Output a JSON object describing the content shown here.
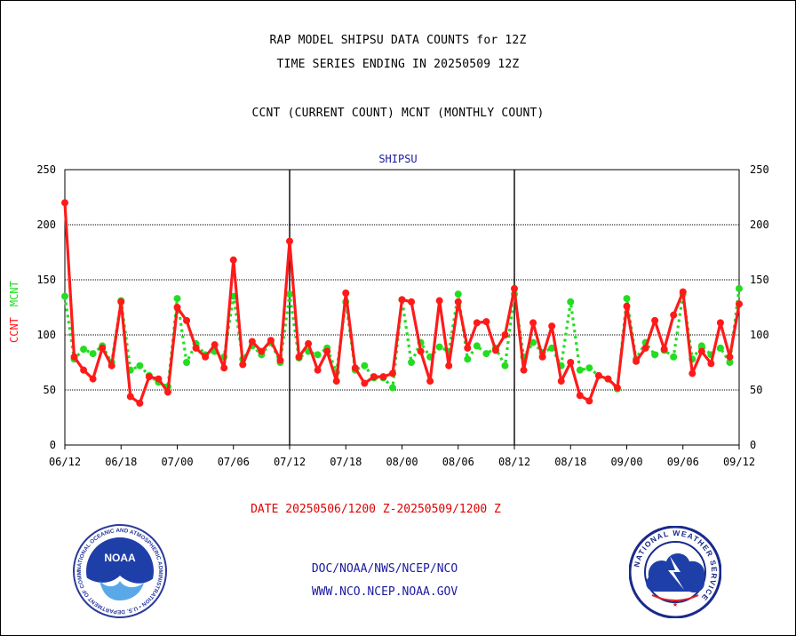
{
  "header": {
    "title": "RAP MODEL SHIPSU DATA COUNTS for 12Z",
    "subtitle": "TIME SERIES ENDING IN 20250509 12Z",
    "legend_note": "CCNT (CURRENT COUNT) MCNT (MONTHLY COUNT)"
  },
  "footer": {
    "date_range": "DATE 20250506/1200 Z-20250509/1200 Z",
    "credit_line1": "DOC/NOAA/NWS/NCEP/NCO",
    "credit_line2": "WWW.NCO.NCEP.NOAA.GOV"
  },
  "logos": {
    "noaa_text": "NOAA",
    "noaa_ring_text": "NATIONAL OCEANIC AND ATMOSPHERIC ADMINISTRATION • U.S. DEPARTMENT OF COMMERCE •",
    "nws_ring_text": "NATIONAL WEATHER SERVICE"
  },
  "colors": {
    "ccnt": "#ff1a1a",
    "mcnt": "#22dd22",
    "axis": "#000000",
    "label_blue": "#1a1aa0",
    "date_red": "#e00000"
  },
  "chart_data": {
    "type": "line",
    "title": "SHIPSU",
    "ylabel_left_parts": [
      "CCNT",
      "MCNT"
    ],
    "ylim": [
      0,
      250
    ],
    "yticks": [
      0,
      50,
      100,
      150,
      200,
      250
    ],
    "grid": true,
    "x_tick_labels": [
      "06/12",
      "06/18",
      "07/00",
      "07/06",
      "07/12",
      "07/18",
      "08/00",
      "08/06",
      "08/12",
      "08/18",
      "09/00",
      "09/06",
      "09/12"
    ],
    "x_range_steps": [
      0,
      72
    ],
    "vertical_lines_at_tick_index": [
      4,
      8
    ],
    "series": [
      {
        "name": "CCNT",
        "values": [
          220,
          80,
          68,
          60,
          88,
          72,
          130,
          44,
          38,
          62,
          60,
          48,
          125,
          113,
          88,
          80,
          91,
          70,
          168,
          73,
          94,
          85,
          95,
          77,
          185,
          80,
          92,
          68,
          85,
          58,
          138,
          70,
          56,
          62,
          62,
          65,
          132,
          130,
          85,
          58,
          131,
          72,
          130,
          88,
          111,
          112,
          86,
          100,
          142,
          68,
          111,
          80,
          108,
          58,
          75,
          45,
          40,
          63,
          60,
          52,
          126,
          76,
          88,
          113,
          87,
          118,
          139,
          65,
          85,
          74,
          111,
          80,
          128
        ]
      },
      {
        "name": "MCNT",
        "values": [
          135,
          78,
          87,
          83,
          90,
          75,
          131,
          68,
          72,
          63,
          57,
          53,
          133,
          75,
          92,
          82,
          85,
          80,
          135,
          78,
          90,
          82,
          93,
          75,
          137,
          79,
          85,
          82,
          88,
          66,
          130,
          68,
          72,
          61,
          61,
          52,
          132,
          75,
          93,
          80,
          89,
          85,
          137,
          78,
          90,
          83,
          88,
          72,
          137,
          80,
          93,
          84,
          88,
          72,
          130,
          68,
          70,
          63,
          60,
          51,
          133,
          78,
          93,
          82,
          86,
          80,
          137,
          78,
          90,
          82,
          88,
          75,
          142
        ]
      }
    ]
  }
}
